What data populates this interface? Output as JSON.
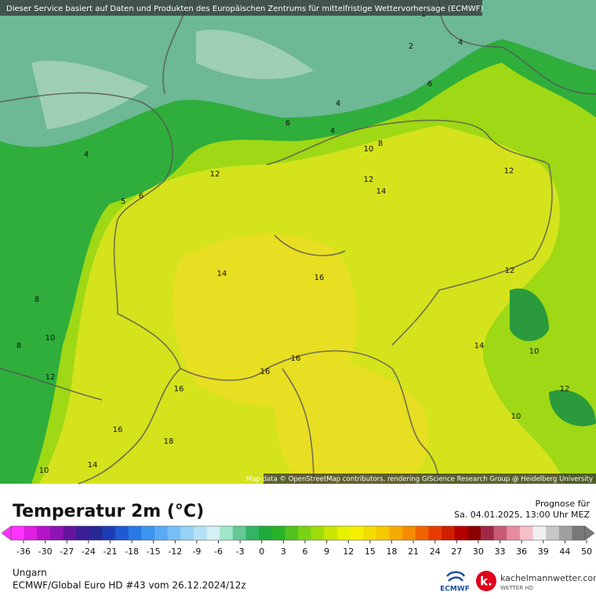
{
  "header": {
    "disclaimer": "Dieser Service basiert auf Daten und Produkten des Europäischen Zentrums für mittelfristige Wettervorhersage (ECMWF)"
  },
  "map": {
    "attribution": "Map data © OpenStreetMap contributors, rendering GIScience Research Group @ Heidelberg University",
    "contour_labels": [
      4,
      6,
      5,
      12,
      8,
      8,
      10,
      12,
      14,
      16,
      16,
      16,
      16,
      16,
      18,
      14,
      10,
      2,
      4,
      6,
      4,
      6,
      4,
      8,
      10,
      12,
      14,
      12,
      12,
      14,
      10,
      12,
      10,
      1
    ]
  },
  "legend": {
    "title": "Temperatur 2m (°C)",
    "ticks": [
      -36,
      -30,
      -27,
      -24,
      -21,
      -18,
      -15,
      -12,
      -9,
      -6,
      -3,
      0,
      3,
      6,
      9,
      12,
      15,
      18,
      21,
      24,
      27,
      30,
      33,
      36,
      39,
      44,
      50
    ],
    "colors": [
      "#ff33ff",
      "#e01ee0",
      "#b414c8",
      "#8c14b4",
      "#6414a0",
      "#3c1e96",
      "#282896",
      "#1e3cb4",
      "#1e5ad2",
      "#2878e6",
      "#3c96f0",
      "#5aaaf5",
      "#78bef5",
      "#96d2f5",
      "#b4e1f5",
      "#d2f0f5",
      "#a0e6c8",
      "#64c896",
      "#32b464",
      "#1eaa3c",
      "#28b428",
      "#50c31e",
      "#78d214",
      "#a0dc0a",
      "#c8e600",
      "#e6f000",
      "#f5f000",
      "#f5dc00",
      "#f5c800",
      "#f5aa00",
      "#f58c00",
      "#f06400",
      "#e63c00",
      "#d21e00",
      "#b40000",
      "#8c0000",
      "#a02846",
      "#c85a78",
      "#e68ca0",
      "#f5bec8",
      "#f0f0f0",
      "#c8c8c8",
      "#a0a0a0",
      "#787878"
    ]
  },
  "forecast": {
    "label": "Prognose für",
    "date": "Sa. 04.01.2025, 13:00 Uhr MEZ"
  },
  "footer": {
    "region": "Ungarn",
    "model": "ECMWF/Global Euro HD #43 vom  26.12.2024/12z",
    "ecmwf_logo": "ECMWF",
    "site": "kachelmannwetter.com",
    "site_sub": "WETTER HD"
  }
}
